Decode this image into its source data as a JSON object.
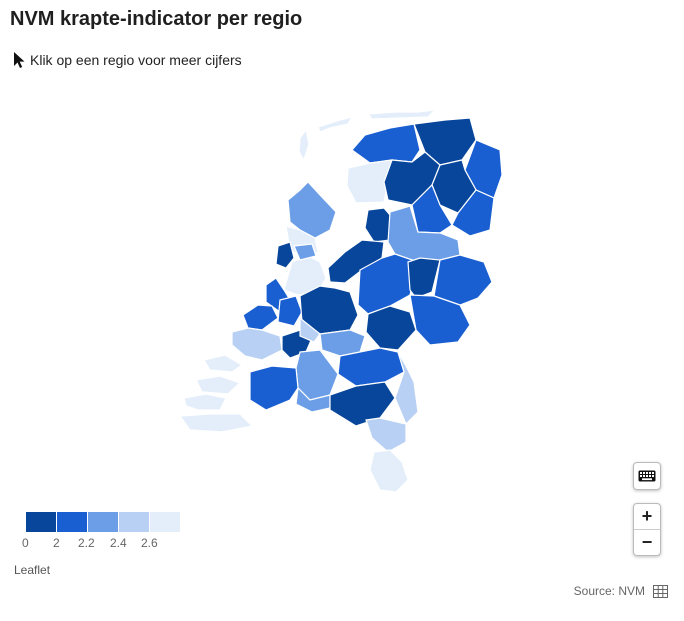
{
  "header": {
    "title": "NVM krapte-indicator per regio"
  },
  "hint": {
    "icon": "cursor-arrow-icon",
    "text": "Klik op een regio voor meer cijfers"
  },
  "legend": {
    "swatches": [
      {
        "color": "#08469b"
      },
      {
        "color": "#1a5fd1"
      },
      {
        "color": "#6b9ee6"
      },
      {
        "color": "#b8d0f3"
      },
      {
        "color": "#e4eefb"
      }
    ],
    "labels": [
      "0",
      "2",
      "2.2",
      "2.4",
      "2.6"
    ]
  },
  "map": {
    "region_colors": [
      "#08469b",
      "#1a5fd1",
      "#6b9ee6",
      "#b8d0f3",
      "#e4eefb"
    ],
    "attribution": "Leaflet"
  },
  "controls": {
    "keyboard_icon": "keyboard-icon",
    "zoom_in_label": "+",
    "zoom_out_label": "−"
  },
  "footer": {
    "source": "Source: NVM",
    "table_icon": "table-icon"
  }
}
